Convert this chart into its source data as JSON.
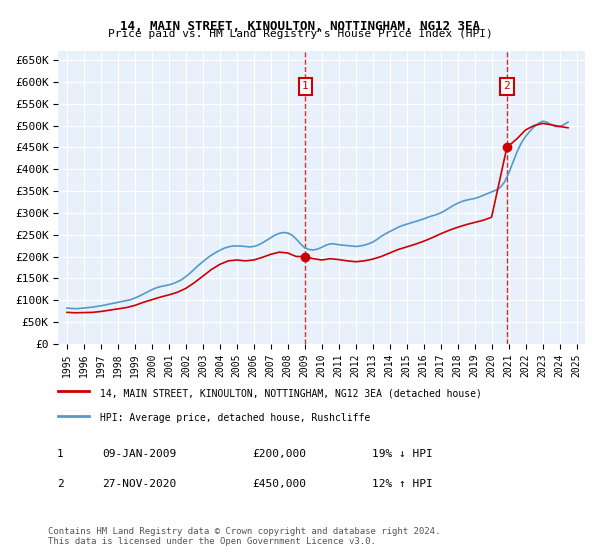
{
  "title": "14, MAIN STREET, KINOULTON, NOTTINGHAM, NG12 3EA",
  "subtitle": "Price paid vs. HM Land Registry's House Price Index (HPI)",
  "hpi_label": "HPI: Average price, detached house, Rushcliffe",
  "property_label": "14, MAIN STREET, KINOULTON, NOTTINGHAM, NG12 3EA (detached house)",
  "annotation1": {
    "label": "1",
    "date": "09-JAN-2009",
    "price": "£200,000",
    "pct": "19% ↓ HPI",
    "year": 2009.03
  },
  "annotation2": {
    "label": "2",
    "date": "27-NOV-2020",
    "price": "£450,000",
    "pct": "12% ↑ HPI",
    "year": 2020.9
  },
  "sale1_price": 200000,
  "sale2_price": 450000,
  "ylim": [
    0,
    670000
  ],
  "xlim": [
    1994.5,
    2025.5
  ],
  "yticks": [
    0,
    50000,
    100000,
    150000,
    200000,
    250000,
    300000,
    350000,
    400000,
    450000,
    500000,
    550000,
    600000,
    650000
  ],
  "xticks": [
    1995,
    1996,
    1997,
    1998,
    1999,
    2000,
    2001,
    2002,
    2003,
    2004,
    2005,
    2006,
    2007,
    2008,
    2009,
    2010,
    2011,
    2012,
    2013,
    2014,
    2015,
    2016,
    2017,
    2018,
    2019,
    2020,
    2021,
    2022,
    2023,
    2024,
    2025
  ],
  "bg_color": "#dce9f5",
  "plot_bg": "#e8f1fb",
  "red_color": "#cc0000",
  "blue_color": "#5599cc",
  "grid_color": "#ffffff",
  "footer": "Contains HM Land Registry data © Crown copyright and database right 2024.\nThis data is licensed under the Open Government Licence v3.0.",
  "hpi_data_x": [
    1995.0,
    1995.25,
    1995.5,
    1995.75,
    1996.0,
    1996.25,
    1996.5,
    1996.75,
    1997.0,
    1997.25,
    1997.5,
    1997.75,
    1998.0,
    1998.25,
    1998.5,
    1998.75,
    1999.0,
    1999.25,
    1999.5,
    1999.75,
    2000.0,
    2000.25,
    2000.5,
    2000.75,
    2001.0,
    2001.25,
    2001.5,
    2001.75,
    2002.0,
    2002.25,
    2002.5,
    2002.75,
    2003.0,
    2003.25,
    2003.5,
    2003.75,
    2004.0,
    2004.25,
    2004.5,
    2004.75,
    2005.0,
    2005.25,
    2005.5,
    2005.75,
    2006.0,
    2006.25,
    2006.5,
    2006.75,
    2007.0,
    2007.25,
    2007.5,
    2007.75,
    2008.0,
    2008.25,
    2008.5,
    2008.75,
    2009.0,
    2009.25,
    2009.5,
    2009.75,
    2010.0,
    2010.25,
    2010.5,
    2010.75,
    2011.0,
    2011.25,
    2011.5,
    2011.75,
    2012.0,
    2012.25,
    2012.5,
    2012.75,
    2013.0,
    2013.25,
    2013.5,
    2013.75,
    2014.0,
    2014.25,
    2014.5,
    2014.75,
    2015.0,
    2015.25,
    2015.5,
    2015.75,
    2016.0,
    2016.25,
    2016.5,
    2016.75,
    2017.0,
    2017.25,
    2017.5,
    2017.75,
    2018.0,
    2018.25,
    2018.5,
    2018.75,
    2019.0,
    2019.25,
    2019.5,
    2019.75,
    2020.0,
    2020.25,
    2020.5,
    2020.75,
    2021.0,
    2021.25,
    2021.5,
    2021.75,
    2022.0,
    2022.25,
    2022.5,
    2022.75,
    2023.0,
    2023.25,
    2023.5,
    2023.75,
    2024.0,
    2024.25,
    2024.5
  ],
  "hpi_data_y": [
    82000,
    81000,
    80500,
    81000,
    82000,
    83000,
    84000,
    85500,
    87000,
    89000,
    91000,
    93000,
    95000,
    97000,
    99000,
    101000,
    105000,
    109000,
    114000,
    119000,
    124000,
    128000,
    131000,
    133000,
    135000,
    138000,
    142000,
    147000,
    154000,
    162000,
    171000,
    180000,
    188000,
    196000,
    203000,
    209000,
    214000,
    219000,
    222000,
    224000,
    224000,
    224000,
    223000,
    222000,
    223000,
    226000,
    231000,
    237000,
    243000,
    249000,
    253000,
    255000,
    254000,
    249000,
    240000,
    229000,
    220000,
    216000,
    215000,
    217000,
    221000,
    226000,
    229000,
    229000,
    227000,
    226000,
    225000,
    224000,
    223000,
    224000,
    226000,
    229000,
    233000,
    239000,
    246000,
    252000,
    257000,
    262000,
    267000,
    271000,
    274000,
    277000,
    280000,
    283000,
    286000,
    290000,
    293000,
    296000,
    300000,
    305000,
    311000,
    317000,
    322000,
    326000,
    329000,
    331000,
    333000,
    336000,
    340000,
    344000,
    348000,
    352000,
    358000,
    370000,
    390000,
    415000,
    440000,
    460000,
    475000,
    487000,
    497000,
    505000,
    510000,
    508000,
    502000,
    498000,
    498000,
    502000,
    508000
  ],
  "property_data_x": [
    1995.0,
    1995.5,
    1996.0,
    1996.5,
    1997.0,
    1997.5,
    1998.0,
    1998.5,
    1999.0,
    1999.5,
    2000.0,
    2000.5,
    2001.0,
    2001.5,
    2002.0,
    2002.5,
    2003.0,
    2003.5,
    2004.0,
    2004.5,
    2005.0,
    2005.5,
    2006.0,
    2006.5,
    2007.0,
    2007.5,
    2008.0,
    2008.5,
    2009.03,
    2009.5,
    2010.0,
    2010.5,
    2011.0,
    2011.5,
    2012.0,
    2012.5,
    2013.0,
    2013.5,
    2014.0,
    2014.5,
    2015.0,
    2015.5,
    2016.0,
    2016.5,
    2017.0,
    2017.5,
    2018.0,
    2018.5,
    2019.0,
    2019.5,
    2020.0,
    2020.9,
    2021.5,
    2022.0,
    2022.5,
    2023.0,
    2023.5,
    2024.0,
    2024.5
  ],
  "property_data_y": [
    72000,
    71000,
    71500,
    72000,
    74000,
    77000,
    80000,
    83000,
    88000,
    95000,
    101000,
    107000,
    112000,
    118000,
    127000,
    140000,
    155000,
    170000,
    182000,
    190000,
    192000,
    190000,
    192000,
    198000,
    205000,
    210000,
    208000,
    200000,
    200000,
    195000,
    192000,
    195000,
    193000,
    190000,
    188000,
    190000,
    194000,
    200000,
    208000,
    216000,
    222000,
    228000,
    235000,
    243000,
    252000,
    260000,
    267000,
    273000,
    278000,
    283000,
    290000,
    450000,
    470000,
    490000,
    500000,
    505000,
    502000,
    498000,
    495000
  ]
}
